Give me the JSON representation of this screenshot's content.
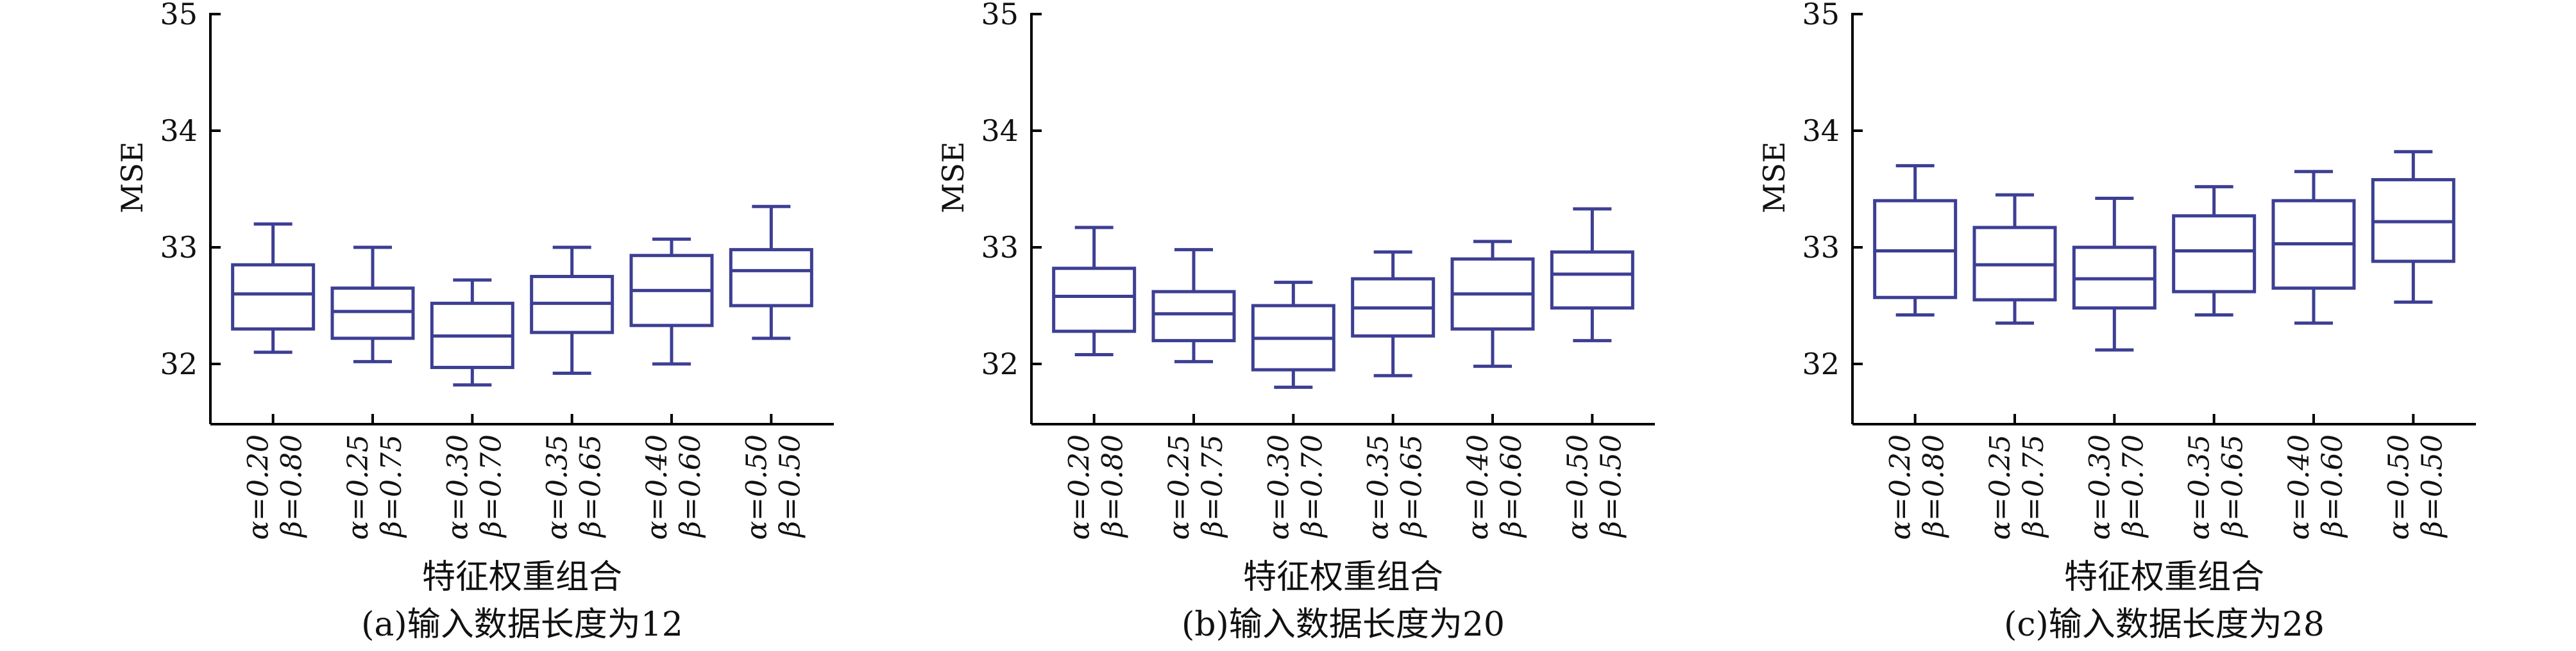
{
  "chart_data": [
    {
      "type": "box",
      "caption": "(a)输入数据长度为12",
      "xlabel": "特征权重组合",
      "ylabel": "MSE",
      "ylim": [
        31.5,
        35
      ],
      "yticks": [
        "32",
        "33",
        "34",
        "35"
      ],
      "categories": [
        [
          "α=0.20",
          "β=0.80"
        ],
        [
          "α=0.25",
          "β=0.75"
        ],
        [
          "α=0.30",
          "β=0.70"
        ],
        [
          "α=0.35",
          "β=0.65"
        ],
        [
          "α=0.40",
          "β=0.60"
        ],
        [
          "α=0.50",
          "β=0.50"
        ]
      ],
      "boxes": [
        {
          "min": 32.1,
          "q1": 32.3,
          "median": 32.6,
          "q3": 32.85,
          "max": 33.2
        },
        {
          "min": 32.02,
          "q1": 32.22,
          "median": 32.45,
          "q3": 32.65,
          "max": 33.0
        },
        {
          "min": 31.82,
          "q1": 31.97,
          "median": 32.24,
          "q3": 32.52,
          "max": 32.72
        },
        {
          "min": 31.92,
          "q1": 32.27,
          "median": 32.52,
          "q3": 32.75,
          "max": 33.0
        },
        {
          "min": 32.0,
          "q1": 32.33,
          "median": 32.63,
          "q3": 32.93,
          "max": 33.07
        },
        {
          "min": 32.22,
          "q1": 32.5,
          "median": 32.8,
          "q3": 32.98,
          "max": 33.35
        }
      ]
    },
    {
      "type": "box",
      "caption": "(b)输入数据长度为20",
      "xlabel": "特征权重组合",
      "ylabel": "MSE",
      "ylim": [
        31.5,
        35
      ],
      "yticks": [
        "32",
        "33",
        "34",
        "35"
      ],
      "categories": [
        [
          "α=0.20",
          "β=0.80"
        ],
        [
          "α=0.25",
          "β=0.75"
        ],
        [
          "α=0.30",
          "β=0.70"
        ],
        [
          "α=0.35",
          "β=0.65"
        ],
        [
          "α=0.40",
          "β=0.60"
        ],
        [
          "α=0.50",
          "β=0.50"
        ]
      ],
      "boxes": [
        {
          "min": 32.08,
          "q1": 32.28,
          "median": 32.58,
          "q3": 32.82,
          "max": 33.17
        },
        {
          "min": 32.02,
          "q1": 32.2,
          "median": 32.43,
          "q3": 32.62,
          "max": 32.98
        },
        {
          "min": 31.8,
          "q1": 31.95,
          "median": 32.22,
          "q3": 32.5,
          "max": 32.7
        },
        {
          "min": 31.9,
          "q1": 32.24,
          "median": 32.48,
          "q3": 32.73,
          "max": 32.96
        },
        {
          "min": 31.98,
          "q1": 32.3,
          "median": 32.6,
          "q3": 32.9,
          "max": 33.05
        },
        {
          "min": 32.2,
          "q1": 32.48,
          "median": 32.77,
          "q3": 32.96,
          "max": 33.33
        }
      ]
    },
    {
      "type": "box",
      "caption": "(c)输入数据长度为28",
      "xlabel": "特征权重组合",
      "ylabel": "MSE",
      "ylim": [
        31.5,
        35
      ],
      "yticks": [
        "32",
        "33",
        "34",
        "35"
      ],
      "categories": [
        [
          "α=0.20",
          "β=0.80"
        ],
        [
          "α=0.25",
          "β=0.75"
        ],
        [
          "α=0.30",
          "β=0.70"
        ],
        [
          "α=0.35",
          "β=0.65"
        ],
        [
          "α=0.40",
          "β=0.60"
        ],
        [
          "α=0.50",
          "β=0.50"
        ]
      ],
      "boxes": [
        {
          "min": 32.42,
          "q1": 32.57,
          "median": 32.97,
          "q3": 33.4,
          "max": 33.7
        },
        {
          "min": 32.35,
          "q1": 32.55,
          "median": 32.85,
          "q3": 33.17,
          "max": 33.45
        },
        {
          "min": 32.12,
          "q1": 32.48,
          "median": 32.73,
          "q3": 33.0,
          "max": 33.42
        },
        {
          "min": 32.42,
          "q1": 32.62,
          "median": 32.97,
          "q3": 33.27,
          "max": 33.52
        },
        {
          "min": 32.35,
          "q1": 32.65,
          "median": 33.03,
          "q3": 33.4,
          "max": 33.65
        },
        {
          "min": 32.53,
          "q1": 32.88,
          "median": 33.22,
          "q3": 33.58,
          "max": 33.82
        }
      ]
    }
  ],
  "colors": {
    "box": "#3d3f93",
    "axis": "#000000"
  }
}
